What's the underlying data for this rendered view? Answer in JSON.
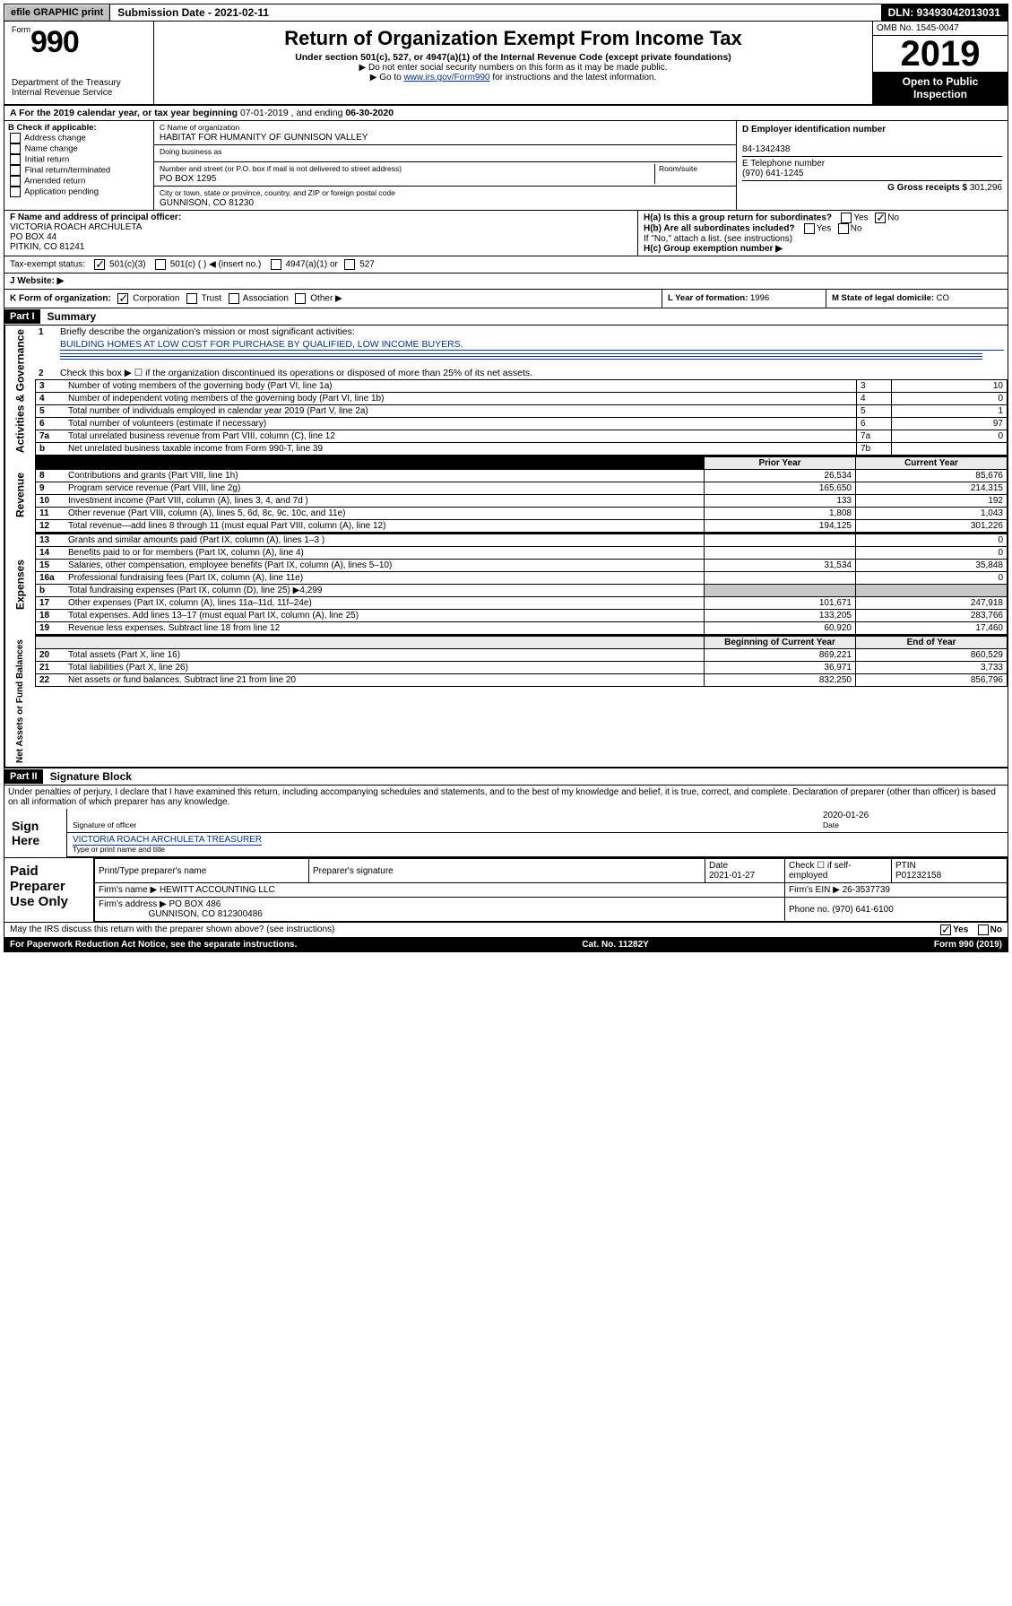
{
  "top": {
    "efile": "efile GRAPHIC print",
    "submission": "Submission Date - 2021-02-11",
    "dln": "DLN: 93493042013031"
  },
  "header": {
    "formPrefix": "Form",
    "form": "990",
    "title": "Return of Organization Exempt From Income Tax",
    "sub1": "Under section 501(c), 527, or 4947(a)(1) of the Internal Revenue Code (except private foundations)",
    "sub2": "▶ Do not enter social security numbers on this form as it may be made public.",
    "sub3_pre": "▶ Go to ",
    "sub3_link": "www.irs.gov/Form990",
    "sub3_post": " for instructions and the latest information.",
    "omb": "OMB No. 1545-0047",
    "year": "2019",
    "open": "Open to Public Inspection",
    "dept": "Department of the Treasury Internal Revenue Service"
  },
  "period": {
    "label_pre": "A For the 2019 calendar year, or tax year beginning ",
    "begin": "07-01-2019",
    "label_mid": " , and ending ",
    "end": "06-30-2020"
  },
  "B": {
    "label": "B Check if applicable:",
    "items": [
      "Address change",
      "Name change",
      "Initial return",
      "Final return/terminated",
      "Amended return",
      "Application pending"
    ]
  },
  "C": {
    "nameLabel": "C Name of organization",
    "name": "HABITAT FOR HUMANITY OF GUNNISON VALLEY",
    "dbaLabel": "Doing business as",
    "dba": "",
    "addrLabel": "Number and street (or P.O. box if mail is not delivered to street address)",
    "addr": "PO BOX 1295",
    "roomLabel": "Room/suite",
    "cityLabel": "City or town, state or province, country, and ZIP or foreign postal code",
    "city": "GUNNISON, CO  81230"
  },
  "D": {
    "label": "D Employer identification number",
    "value": "84-1342438"
  },
  "E": {
    "label": "E Telephone number",
    "value": "(970) 641-1245"
  },
  "G": {
    "label": "G Gross receipts $",
    "value": "301,296"
  },
  "F": {
    "label": "F  Name and address of principal officer:",
    "name": "VICTORIA ROACH ARCHULETA",
    "addr1": "PO BOX 44",
    "addr2": "PITKIN, CO  81241"
  },
  "H": {
    "a_label": "H(a)  Is this a group return for subordinates?",
    "a_yes": "Yes",
    "a_no_checked": true,
    "a_no": "No",
    "b_label": "H(b)  Are all subordinates included?",
    "b_yes": "Yes",
    "b_no": "No",
    "b_note": "If \"No,\" attach a list. (see instructions)",
    "c_label": "H(c)  Group exemption number ▶"
  },
  "I": {
    "label": "Tax-exempt status:",
    "opt1": "501(c)(3)",
    "opt2": "501(c) (  ) ◀ (insert no.)",
    "opt3": "4947(a)(1) or",
    "opt4": "527"
  },
  "J": {
    "label": "J    Website: ▶"
  },
  "K": {
    "label": "K Form of organization:",
    "corp": "Corporation",
    "trust": "Trust",
    "assoc": "Association",
    "other": "Other ▶"
  },
  "L": {
    "label": "L Year of formation:",
    "value": "1996"
  },
  "M": {
    "label": "M State of legal domicile:",
    "value": "CO"
  },
  "partI": {
    "tag": "Part I",
    "title": "Summary"
  },
  "summary": {
    "l1": "Briefly describe the organization's mission or most significant activities:",
    "l1v": "BUILDING HOMES AT LOW COST FOR PURCHASE BY QUALIFIED, LOW INCOME BUYERS.",
    "l2": "Check this box ▶ ☐  if the organization discontinued its operations or disposed of more than 25% of its net assets.",
    "l3": "Number of voting members of the governing body (Part VI, line 1a)",
    "l3n": "3",
    "l3v": "10",
    "l4": "Number of independent voting members of the governing body (Part VI, line 1b)",
    "l4n": "4",
    "l4v": "0",
    "l5": "Total number of individuals employed in calendar year 2019 (Part V, line 2a)",
    "l5n": "5",
    "l5v": "1",
    "l6": "Total number of volunteers (estimate if necessary)",
    "l6n": "6",
    "l6v": "97",
    "l7a": "Total unrelated business revenue from Part VIII, column (C), line 12",
    "l7an": "7a",
    "l7av": "0",
    "l7b": "Net unrelated business taxable income from Form 990-T, line 39",
    "l7bn": "7b",
    "l7bv": ""
  },
  "fin": {
    "h_prior": "Prior Year",
    "h_current": "Current Year",
    "rows_rev": [
      {
        "n": "8",
        "d": "Contributions and grants (Part VIII, line 1h)",
        "p": "26,534",
        "c": "85,676"
      },
      {
        "n": "9",
        "d": "Program service revenue (Part VIII, line 2g)",
        "p": "165,650",
        "c": "214,315"
      },
      {
        "n": "10",
        "d": "Investment income (Part VIII, column (A), lines 3, 4, and 7d )",
        "p": "133",
        "c": "192"
      },
      {
        "n": "11",
        "d": "Other revenue (Part VIII, column (A), lines 5, 6d, 8c, 9c, 10c, and 11e)",
        "p": "1,808",
        "c": "1,043"
      },
      {
        "n": "12",
        "d": "Total revenue—add lines 8 through 11 (must equal Part VIII, column (A), line 12)",
        "p": "194,125",
        "c": "301,226"
      }
    ],
    "rows_exp": [
      {
        "n": "13",
        "d": "Grants and similar amounts paid (Part IX, column (A), lines 1–3 )",
        "p": "",
        "c": "0"
      },
      {
        "n": "14",
        "d": "Benefits paid to or for members (Part IX, column (A), line 4)",
        "p": "",
        "c": "0"
      },
      {
        "n": "15",
        "d": "Salaries, other compensation, employee benefits (Part IX, column (A), lines 5–10)",
        "p": "31,534",
        "c": "35,848"
      },
      {
        "n": "16a",
        "d": "Professional fundraising fees (Part IX, column (A), line 11e)",
        "p": "",
        "c": "0"
      },
      {
        "n": "b",
        "d": "Total fundraising expenses (Part IX, column (D), line 25) ▶4,299",
        "p": "SHADE",
        "c": "SHADE"
      },
      {
        "n": "17",
        "d": "Other expenses (Part IX, column (A), lines 11a–11d, 11f–24e)",
        "p": "101,671",
        "c": "247,918"
      },
      {
        "n": "18",
        "d": "Total expenses. Add lines 13–17 (must equal Part IX, column (A), line 25)",
        "p": "133,205",
        "c": "283,766"
      },
      {
        "n": "19",
        "d": "Revenue less expenses. Subtract line 18 from line 12",
        "p": "60,920",
        "c": "17,460"
      }
    ],
    "h_begin": "Beginning of Current Year",
    "h_end": "End of Year",
    "rows_net": [
      {
        "n": "20",
        "d": "Total assets (Part X, line 16)",
        "p": "869,221",
        "c": "860,529"
      },
      {
        "n": "21",
        "d": "Total liabilities (Part X, line 26)",
        "p": "36,971",
        "c": "3,733"
      },
      {
        "n": "22",
        "d": "Net assets or fund balances. Subtract line 21 from line 20",
        "p": "832,250",
        "c": "856,796"
      }
    ]
  },
  "partII": {
    "tag": "Part II",
    "title": "Signature Block"
  },
  "perjury": "Under penalties of perjury, I declare that I have examined this return, including accompanying schedules and statements, and to the best of my knowledge and belief, it is true, correct, and complete. Declaration of preparer (other than officer) is based on all information of which preparer has any knowledge.",
  "sign": {
    "here": "Sign Here",
    "sigOfficer": "Signature of officer",
    "date": "2020-01-26",
    "dateLabel": "Date",
    "name": "VICTORIA ROACH ARCHULETA  TREASURER",
    "nameLabel": "Type or print name and title"
  },
  "paid": {
    "label": "Paid Preparer Use Only",
    "h1": "Print/Type preparer's name",
    "h2": "Preparer's signature",
    "h3": "Date",
    "h3v": "2021-01-27",
    "h4": "Check ☐ if self-employed",
    "h5": "PTIN",
    "h5v": "P01232158",
    "firmNameLabel": "Firm's name    ▶",
    "firmName": "HEWITT ACCOUNTING LLC",
    "firmEinLabel": "Firm's EIN ▶",
    "firmEin": "26-3537739",
    "firmAddrLabel": "Firm's address ▶",
    "firmAddr": "PO BOX 486",
    "firmCity": "GUNNISON, CO  812300486",
    "phoneLabel": "Phone no.",
    "phone": "(970) 641-6100"
  },
  "discuss": {
    "q": "May the IRS discuss this return with the preparer shown above? (see instructions)",
    "yes": "Yes",
    "no": "No"
  },
  "footer": {
    "left": "For Paperwork Reduction Act Notice, see the separate instructions.",
    "mid": "Cat. No. 11282Y",
    "right": "Form 990 (2019)"
  }
}
